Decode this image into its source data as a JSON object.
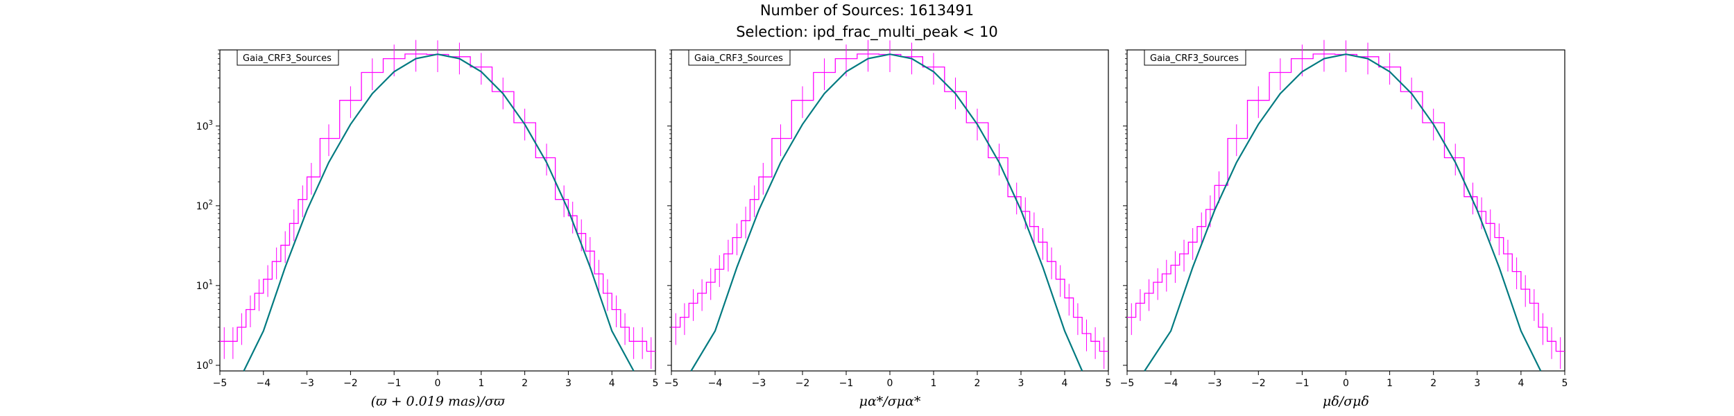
{
  "chart_data": [
    {
      "type": "histogram",
      "title": "Number of Sources: 1613491",
      "subtitle": "Selection: ipd_frac_multi_peak < 10",
      "xlabel": "(ϖ + 0.019 mas)/σϖ",
      "legend": "Gaia_CRF3_Sources",
      "legend_position": "top-left",
      "xlim": [
        -5,
        5
      ],
      "ylim": [
        0.85,
        9000
      ],
      "yscale": "log",
      "xticks": [
        "−5",
        "−4",
        "−3",
        "−2",
        "−1",
        "0",
        "1",
        "2",
        "3",
        "4",
        "5"
      ],
      "yticks": [
        "10^0",
        "10^1",
        "10^2",
        "10^3"
      ],
      "series": [
        {
          "style": "step",
          "color": "#ff00ff",
          "x": [
            -4.9,
            -4.7,
            -4.5,
            -4.3,
            -4.1,
            -3.9,
            -3.7,
            -3.5,
            -3.3,
            -3.1,
            -2.9,
            -2.5,
            -2.0,
            -1.5,
            -1.0,
            -0.5,
            0.0,
            0.5,
            1.0,
            1.5,
            2.0,
            2.5,
            2.9,
            3.1,
            3.3,
            3.5,
            3.7,
            3.9,
            4.1,
            4.3,
            4.5,
            4.7,
            4.9
          ],
          "y": [
            2,
            2,
            3,
            5,
            8,
            12,
            20,
            32,
            60,
            120,
            230,
            700,
            2100,
            4700,
            7000,
            8000,
            7900,
            7400,
            5500,
            2700,
            1100,
            400,
            120,
            75,
            45,
            27,
            14,
            8,
            5,
            3,
            2,
            2,
            1.5
          ]
        },
        {
          "style": "line",
          "color": "#007a80",
          "x": [
            -4.45,
            -4.0,
            -3.5,
            -3.0,
            -2.5,
            -2.0,
            -1.5,
            -1.0,
            -0.5,
            0.0,
            0.5,
            1.0,
            1.5,
            2.0,
            2.5,
            3.0,
            3.5,
            4.0,
            4.5
          ],
          "y": [
            0.85,
            2.7,
            17,
            88,
            350,
            1050,
            2550,
            4800,
            7000,
            7950,
            7000,
            4800,
            2550,
            1050,
            350,
            88,
            17,
            2.7,
            0.85
          ]
        }
      ]
    },
    {
      "type": "histogram",
      "xlabel": "μα*/σμα*",
      "legend": "Gaia_CRF3_Sources",
      "legend_position": "top-left",
      "xlim": [
        -5,
        5
      ],
      "ylim": [
        0.85,
        9000
      ],
      "yscale": "log",
      "xticks": [
        "−5",
        "−4",
        "−3",
        "−2",
        "−1",
        "0",
        "1",
        "2",
        "3",
        "4",
        "5"
      ],
      "series": [
        {
          "style": "step",
          "color": "#ff00ff",
          "x": [
            -4.9,
            -4.7,
            -4.5,
            -4.3,
            -4.1,
            -3.9,
            -3.7,
            -3.5,
            -3.3,
            -3.1,
            -2.9,
            -2.5,
            -2.0,
            -1.5,
            -1.0,
            -0.5,
            0.0,
            0.5,
            1.0,
            1.5,
            2.0,
            2.5,
            2.9,
            3.1,
            3.3,
            3.5,
            3.7,
            3.9,
            4.1,
            4.3,
            4.5,
            4.7,
            4.9
          ],
          "y": [
            3,
            4,
            6,
            8,
            11,
            16,
            25,
            40,
            65,
            120,
            230,
            700,
            2100,
            4700,
            7000,
            8000,
            7900,
            7400,
            5500,
            2700,
            1100,
            400,
            130,
            85,
            55,
            35,
            20,
            12,
            7,
            4,
            2.5,
            2,
            1.5
          ]
        },
        {
          "style": "line",
          "color": "#007a80",
          "x": [
            -4.55,
            -4.0,
            -3.5,
            -3.0,
            -2.5,
            -2.0,
            -1.5,
            -1.0,
            -0.5,
            0.0,
            0.5,
            1.0,
            1.5,
            2.0,
            2.5,
            3.0,
            3.5,
            4.0,
            4.4
          ],
          "y": [
            0.85,
            2.7,
            17,
            88,
            350,
            1050,
            2550,
            4800,
            7000,
            7950,
            7000,
            4800,
            2550,
            1050,
            350,
            88,
            17,
            2.7,
            0.85
          ]
        }
      ]
    },
    {
      "type": "histogram",
      "xlabel": "μδ/σμδ",
      "legend": "Gaia_CRF3_Sources",
      "legend_position": "top-left",
      "xlim": [
        -5,
        5
      ],
      "ylim": [
        0.85,
        9000
      ],
      "yscale": "log",
      "xticks": [
        "−5",
        "−4",
        "−3",
        "−2",
        "−1",
        "0",
        "1",
        "2",
        "3",
        "4",
        "5"
      ],
      "series": [
        {
          "style": "step",
          "color": "#ff00ff",
          "x": [
            -4.9,
            -4.7,
            -4.5,
            -4.3,
            -4.1,
            -3.9,
            -3.7,
            -3.5,
            -3.3,
            -3.1,
            -2.9,
            -2.5,
            -2.0,
            -1.5,
            -1.0,
            -0.5,
            0.0,
            0.5,
            1.0,
            1.5,
            2.0,
            2.5,
            2.9,
            3.1,
            3.3,
            3.5,
            3.7,
            3.9,
            4.1,
            4.3,
            4.5,
            4.7,
            4.9
          ],
          "y": [
            4,
            6,
            8,
            11,
            14,
            18,
            25,
            35,
            55,
            90,
            180,
            700,
            2100,
            4700,
            7000,
            8000,
            7900,
            7400,
            5500,
            2700,
            1100,
            400,
            130,
            85,
            60,
            40,
            25,
            15,
            9,
            6,
            3,
            2,
            1.5
          ]
        },
        {
          "style": "line",
          "color": "#007a80",
          "x": [
            -4.6,
            -4.0,
            -3.5,
            -3.0,
            -2.5,
            -2.0,
            -1.5,
            -1.0,
            -0.5,
            0.0,
            0.5,
            1.0,
            1.5,
            2.0,
            2.5,
            3.0,
            3.5,
            4.0,
            4.45
          ],
          "y": [
            0.85,
            2.7,
            17,
            88,
            350,
            1050,
            2550,
            4800,
            7000,
            7950,
            7000,
            4800,
            2550,
            1050,
            350,
            88,
            17,
            2.7,
            0.85
          ]
        }
      ]
    }
  ]
}
